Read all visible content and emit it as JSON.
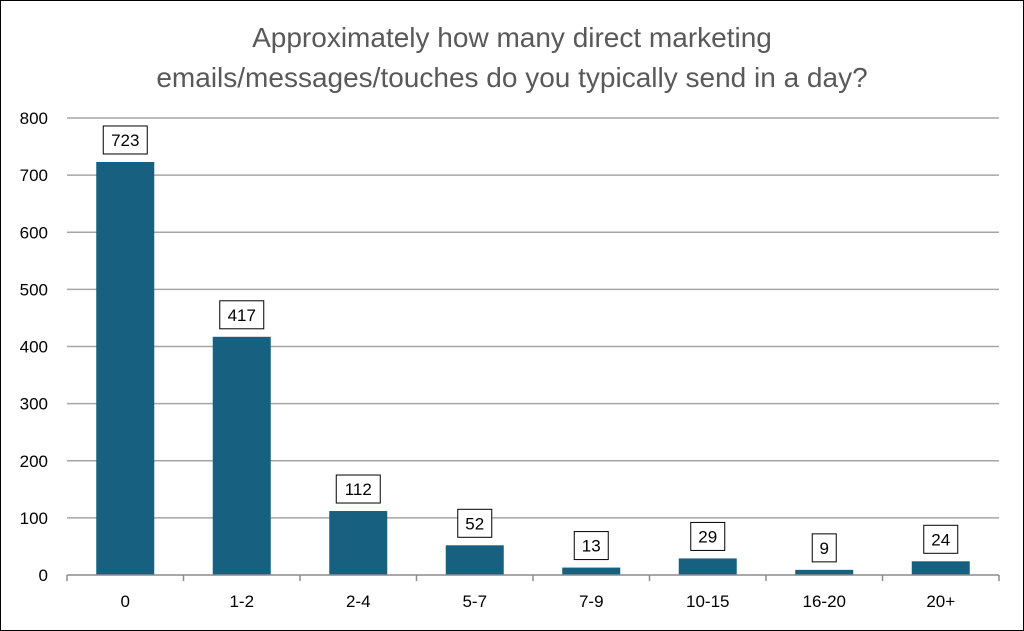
{
  "chart_data": {
    "type": "bar",
    "title_lines": [
      "Approximately how many direct marketing",
      "emails/messages/touches do you typically send in a day?"
    ],
    "categories": [
      "0",
      "1-2",
      "2-4",
      "5-7",
      "7-9",
      "10-15",
      "16-20",
      "20+"
    ],
    "values": [
      723,
      417,
      112,
      52,
      13,
      29,
      9,
      24
    ],
    "ylim": [
      0,
      800
    ],
    "yticks": [
      0,
      100,
      200,
      300,
      400,
      500,
      600,
      700,
      800
    ],
    "xlabel": "",
    "ylabel": "",
    "grid": true,
    "data_labels": true,
    "colors": {
      "bar": "#17607f",
      "grid": "#a6a6a6",
      "title": "#595959",
      "axis": "#8c8c8c"
    }
  }
}
